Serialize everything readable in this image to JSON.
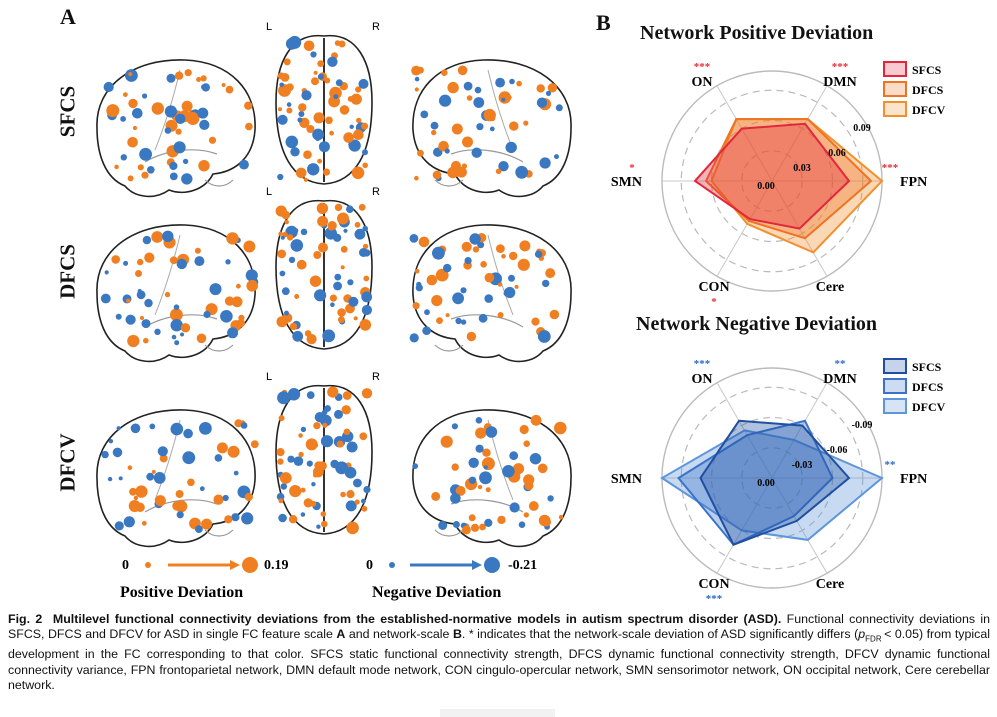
{
  "figure": {
    "panel_a_letter": "A",
    "panel_b_letter": "B",
    "row_labels": [
      "SFCS",
      "DFCS",
      "DFCV"
    ],
    "hemi_left": "L",
    "hemi_right": "R",
    "legend": {
      "pos_min": "0",
      "pos_max": "0.19",
      "pos_title": "Positive Deviation",
      "neg_min": "0",
      "neg_max": "-0.21",
      "neg_title": "Negative Deviation",
      "pos_color": "#f07f22",
      "neg_color": "#3a78c2"
    }
  },
  "chart_data": [
    {
      "type": "radar",
      "title": "Network Positive Deviation",
      "axes": [
        "ON",
        "DMN",
        "FPN",
        "Cere",
        "CON",
        "SMN"
      ],
      "axis_stars": [
        "***",
        "***",
        "***",
        "",
        "*",
        "*"
      ],
      "star_color": "#e8303a",
      "rings": [
        "0.00",
        "0.03",
        "0.06",
        "0.09"
      ],
      "rmax": 0.1,
      "series": [
        {
          "name": "SFCS",
          "values": [
            0.055,
            0.06,
            0.07,
            0.05,
            0.04,
            0.07
          ],
          "color": "#e3263b"
        },
        {
          "name": "DFCS",
          "values": [
            0.065,
            0.065,
            0.09,
            0.06,
            0.042,
            0.06
          ],
          "color": "#ee7322"
        },
        {
          "name": "DFCV",
          "values": [
            0.065,
            0.065,
            0.1,
            0.075,
            0.045,
            0.055
          ],
          "color": "#f2902e"
        }
      ]
    },
    {
      "type": "radar",
      "title": "Network Negative Deviation",
      "axes": [
        "ON",
        "DMN",
        "FPN",
        "Cere",
        "CON",
        "SMN"
      ],
      "axis_stars": [
        "***",
        "**",
        "**",
        "",
        "***",
        ""
      ],
      "star_color": "#2f6bc2",
      "rings": [
        "0.00",
        "-0.03",
        "-0.06",
        "-0.09"
      ],
      "rmax": 0.1,
      "series": [
        {
          "name": "SFCS",
          "values": [
            0.06,
            0.055,
            0.07,
            0.045,
            0.07,
            0.065
          ],
          "color": "#1f4fa3"
        },
        {
          "name": "DFCS",
          "values": [
            0.045,
            0.06,
            0.055,
            0.04,
            0.07,
            0.085
          ],
          "color": "#3a73c9"
        },
        {
          "name": "DFCV",
          "values": [
            0.05,
            0.04,
            0.1,
            0.065,
            0.055,
            0.1
          ],
          "color": "#5e95db"
        }
      ]
    }
  ],
  "caption": {
    "fig_label": "Fig. 2",
    "title": "Multilevel functional connectivity deviations from the established-normative models in autism spectrum disorder (ASD).",
    "text_1": "Functional connectivity deviations in SFCS, DFCS and DFCV for ASD in single FC feature scale",
    "label_a": "A",
    "text_2": "and network-scale",
    "label_b": "B",
    "text_3": ". * indicates that the network-scale deviation of ASD significantly differs (",
    "p_sym": "p",
    "p_sub": "FDR",
    "text_4": "< 0.05) from typical development in the FC corresponding to that color. SFCS static functional connectivity strength, DFCS dynamic functional connectivity strength, DFCV dynamic functional connectivity variance, FPN frontoparietal network, DMN default mode network, CON cingulo-opercular network, SMN sensorimotor network, ON occipital network, Cere cerebellar network."
  }
}
